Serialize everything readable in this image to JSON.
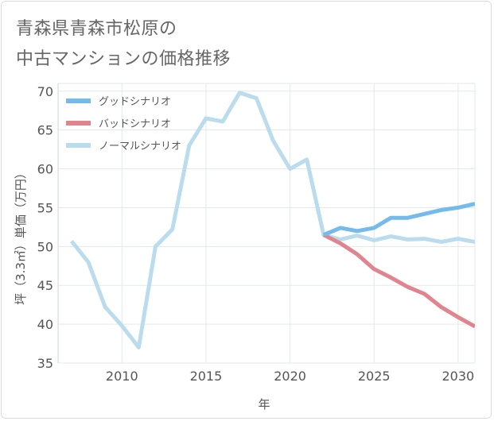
{
  "chart_data": {
    "type": "line",
    "title": [
      "青森県青森市松原の",
      "中古マンションの価格推移"
    ],
    "xlabel": "年",
    "ylabel": "坪（3.3㎡）単価（万円）",
    "xlim": [
      2006.2,
      2031
    ],
    "ylim": [
      35,
      71
    ],
    "xticks": [
      2010,
      2015,
      2020,
      2025,
      2030
    ],
    "yticks": [
      35,
      40,
      45,
      50,
      55,
      60,
      65,
      70
    ],
    "grid": true,
    "legend_position": "top-left",
    "series": [
      {
        "name": "グッドシナリオ",
        "color": "#74bbec",
        "x": [
          2022,
          2023,
          2024,
          2025,
          2026,
          2027,
          2028,
          2029,
          2030,
          2031
        ],
        "y": [
          51.5,
          52.4,
          52.0,
          52.4,
          53.7,
          53.7,
          54.2,
          54.7,
          55.0,
          55.5
        ]
      },
      {
        "name": "バッドシナリオ",
        "color": "#e0848e",
        "x": [
          2022,
          2023,
          2024,
          2025,
          2026,
          2027,
          2028,
          2029,
          2030,
          2031
        ],
        "y": [
          51.5,
          50.4,
          49.0,
          47.1,
          46.0,
          44.8,
          43.9,
          42.2,
          40.9,
          39.7
        ]
      },
      {
        "name": "ノーマルシナリオ",
        "color": "#badcec",
        "x": [
          2007,
          2008,
          2009,
          2010,
          2011,
          2012,
          2013,
          2014,
          2015,
          2016,
          2017,
          2018,
          2019,
          2020,
          2021,
          2022,
          2023,
          2024,
          2025,
          2026,
          2027,
          2028,
          2029,
          2030,
          2031
        ],
        "y": [
          50.7,
          48.0,
          42.2,
          39.8,
          37.0,
          50.0,
          52.2,
          63.0,
          66.5,
          66.1,
          69.8,
          69.1,
          63.6,
          60.0,
          61.2,
          51.5,
          50.9,
          51.4,
          50.8,
          51.3,
          50.9,
          51.0,
          50.6,
          51.0,
          50.6
        ]
      }
    ]
  }
}
